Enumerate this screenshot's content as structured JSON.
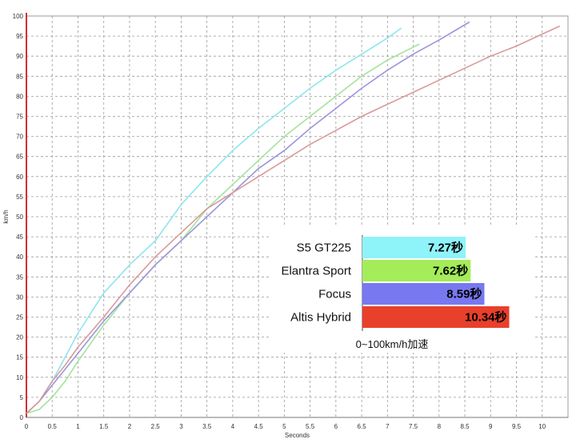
{
  "chart_data": [
    {
      "type": "line",
      "title": "",
      "xlabel": "Seconds",
      "ylabel": "km/h",
      "xlim": [
        0,
        10.5
      ],
      "ylim": [
        0,
        100
      ],
      "x_ticks": [
        "0",
        "0.5",
        "1",
        "1.5",
        "2",
        "2.5",
        "3",
        "3.5",
        "4",
        "4.5",
        "5",
        "5.5",
        "6",
        "6.5",
        "7",
        "7.5",
        "8",
        "8.5",
        "9",
        "9.5",
        "10"
      ],
      "y_ticks": [
        "0",
        "5",
        "10",
        "15",
        "20",
        "25",
        "30",
        "35",
        "40",
        "45",
        "50",
        "55",
        "60",
        "65",
        "70",
        "75",
        "80",
        "85",
        "90",
        "95",
        "100"
      ],
      "grid": true,
      "series": [
        {
          "color": "#8de6ee",
          "points": [
            [
              0,
              1
            ],
            [
              0.25,
              4
            ],
            [
              0.5,
              9
            ],
            [
              0.75,
              15
            ],
            [
              1,
              21
            ],
            [
              1.5,
              31
            ],
            [
              2,
              38
            ],
            [
              2.5,
              44
            ],
            [
              3,
              53
            ],
            [
              3.5,
              60
            ],
            [
              4,
              66.5
            ],
            [
              4.5,
              72
            ],
            [
              5,
              77
            ],
            [
              5.5,
              82
            ],
            [
              6,
              86.5
            ],
            [
              6.5,
              90.5
            ],
            [
              7,
              94.5
            ],
            [
              7.27,
              97
            ]
          ]
        },
        {
          "color": "#a3e39b",
          "points": [
            [
              0,
              1
            ],
            [
              0.25,
              2
            ],
            [
              0.5,
              5
            ],
            [
              0.75,
              9
            ],
            [
              1,
              14
            ],
            [
              1.5,
              23
            ],
            [
              2,
              31
            ],
            [
              2.5,
              38
            ],
            [
              3,
              44
            ],
            [
              3.5,
              52
            ],
            [
              4,
              58
            ],
            [
              4.5,
              64
            ],
            [
              5,
              70
            ],
            [
              5.5,
              75
            ],
            [
              6,
              80
            ],
            [
              6.5,
              85
            ],
            [
              7,
              89
            ],
            [
              7.62,
              93
            ]
          ]
        },
        {
          "color": "#9b95dc",
          "points": [
            [
              0,
              1
            ],
            [
              0.25,
              4
            ],
            [
              0.5,
              8
            ],
            [
              0.75,
              12
            ],
            [
              1,
              16
            ],
            [
              1.5,
              24
            ],
            [
              2,
              31
            ],
            [
              2.5,
              38
            ],
            [
              3,
              44
            ],
            [
              3.5,
              50
            ],
            [
              4,
              56
            ],
            [
              4.5,
              62
            ],
            [
              5,
              66.5
            ],
            [
              5.5,
              72
            ],
            [
              6,
              77
            ],
            [
              6.5,
              82
            ],
            [
              7,
              86.5
            ],
            [
              7.5,
              90.5
            ],
            [
              8,
              94
            ],
            [
              8.59,
              98.5
            ]
          ]
        },
        {
          "color": "#d99a99",
          "points": [
            [
              0,
              1
            ],
            [
              0.25,
              4
            ],
            [
              0.5,
              9
            ],
            [
              0.75,
              13
            ],
            [
              1,
              17.5
            ],
            [
              1.5,
              25
            ],
            [
              2,
              33
            ],
            [
              2.5,
              40
            ],
            [
              3,
              46
            ],
            [
              3.5,
              52
            ],
            [
              4,
              56
            ],
            [
              4.5,
              60
            ],
            [
              5,
              64
            ],
            [
              5.5,
              68
            ],
            [
              6,
              71.5
            ],
            [
              6.5,
              75
            ],
            [
              7,
              78
            ],
            [
              7.5,
              81
            ],
            [
              8,
              84
            ],
            [
              8.5,
              87
            ],
            [
              9,
              90
            ],
            [
              9.5,
              92.5
            ],
            [
              10,
              95.5
            ],
            [
              10.34,
              97.5
            ]
          ]
        }
      ]
    },
    {
      "type": "bar",
      "orientation": "horizontal",
      "title": "0~100km/h加速",
      "categories": [
        "S5 GT225",
        "Elantra Sport",
        "Focus",
        "Altis Hybrid"
      ],
      "values": [
        7.27,
        7.62,
        8.59,
        10.34
      ],
      "value_labels": [
        "7.27秒",
        "7.62秒",
        "8.59秒",
        "10.34秒"
      ],
      "colors": [
        "#8ff3fa",
        "#a4ec59",
        "#7878f0",
        "#e8402b"
      ],
      "xlim": [
        0,
        12
      ]
    }
  ]
}
